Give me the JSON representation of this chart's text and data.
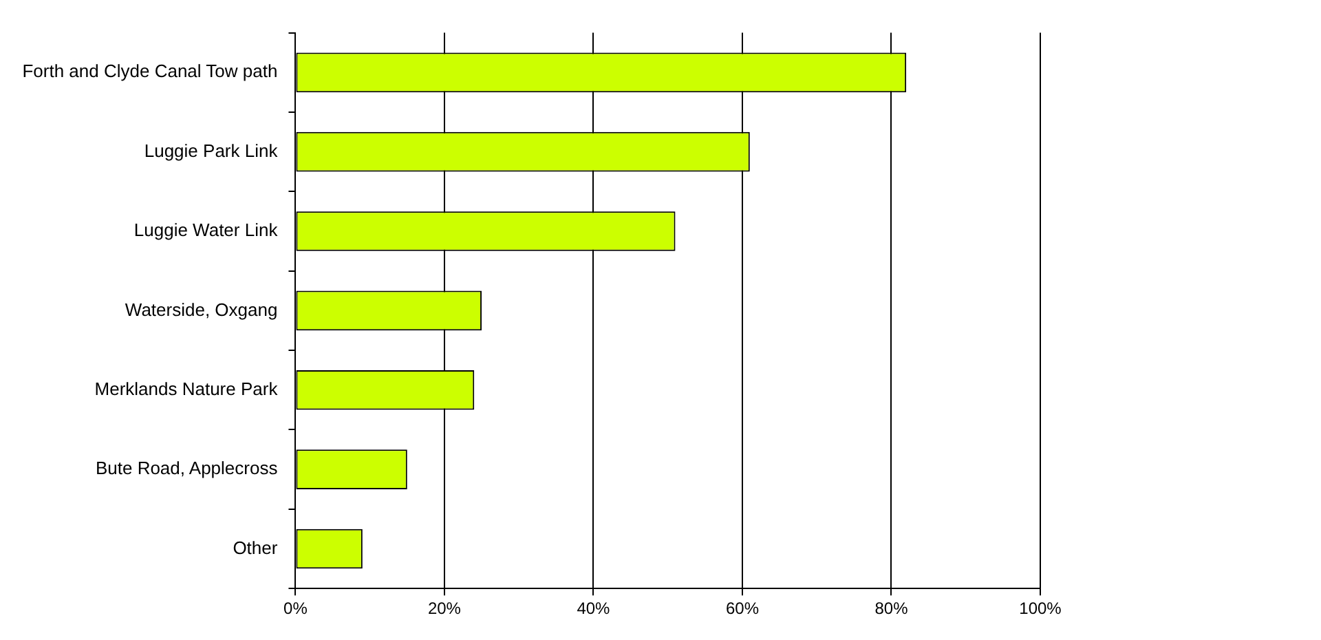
{
  "chart_data": {
    "type": "bar",
    "orientation": "horizontal",
    "categories": [
      "Forth and Clyde Canal Tow path",
      "Luggie Park Link",
      "Luggie Water Link",
      "Waterside, Oxgang",
      "Merklands Nature Park",
      "Bute Road, Applecross",
      "Other"
    ],
    "values": [
      82,
      61,
      51,
      25,
      24,
      15,
      9
    ],
    "color": "#ccff00",
    "xlim": [
      0,
      100
    ],
    "xticks": [
      {
        "value": 0,
        "label": "0%"
      },
      {
        "value": 20,
        "label": "20%"
      },
      {
        "value": 40,
        "label": "40%"
      },
      {
        "value": 60,
        "label": "60%"
      },
      {
        "value": 80,
        "label": "80%"
      },
      {
        "value": 100,
        "label": "100%"
      }
    ],
    "grid": "x",
    "legend": false
  }
}
